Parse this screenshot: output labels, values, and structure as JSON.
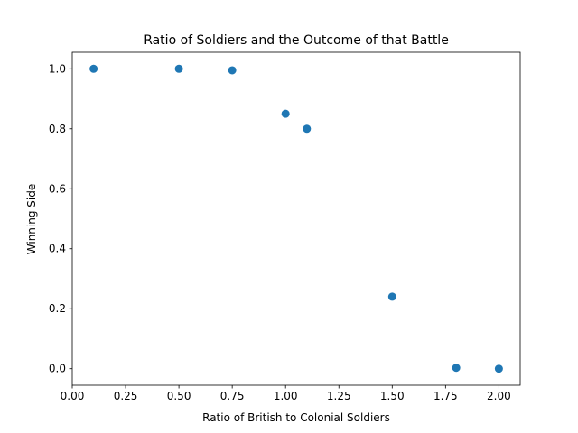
{
  "chart_data": {
    "type": "scatter",
    "title": "Ratio of Soldiers and the Outcome of that Battle",
    "xlabel": "Ratio of British to Colonial Soldiers",
    "ylabel": "Winning Side",
    "xlim": [
      0.0,
      2.1
    ],
    "ylim": [
      -0.055,
      1.055
    ],
    "x_ticks": [
      0.0,
      0.25,
      0.5,
      0.75,
      1.0,
      1.25,
      1.5,
      1.75,
      2.0
    ],
    "x_tick_labels": [
      "0.00",
      "0.25",
      "0.50",
      "0.75",
      "1.00",
      "1.25",
      "1.50",
      "1.75",
      "2.00"
    ],
    "y_ticks": [
      0.0,
      0.2,
      0.4,
      0.6,
      0.8,
      1.0
    ],
    "y_tick_labels": [
      "0.0",
      "0.2",
      "0.4",
      "0.6",
      "0.8",
      "1.0"
    ],
    "grid": false,
    "marker_color": "#1f77b4",
    "points": [
      {
        "x": 0.1,
        "y": 1.0
      },
      {
        "x": 0.5,
        "y": 1.0
      },
      {
        "x": 0.75,
        "y": 0.995
      },
      {
        "x": 1.0,
        "y": 0.85
      },
      {
        "x": 1.1,
        "y": 0.8
      },
      {
        "x": 1.5,
        "y": 0.24
      },
      {
        "x": 1.8,
        "y": 0.003
      },
      {
        "x": 2.0,
        "y": 0.0
      }
    ]
  }
}
